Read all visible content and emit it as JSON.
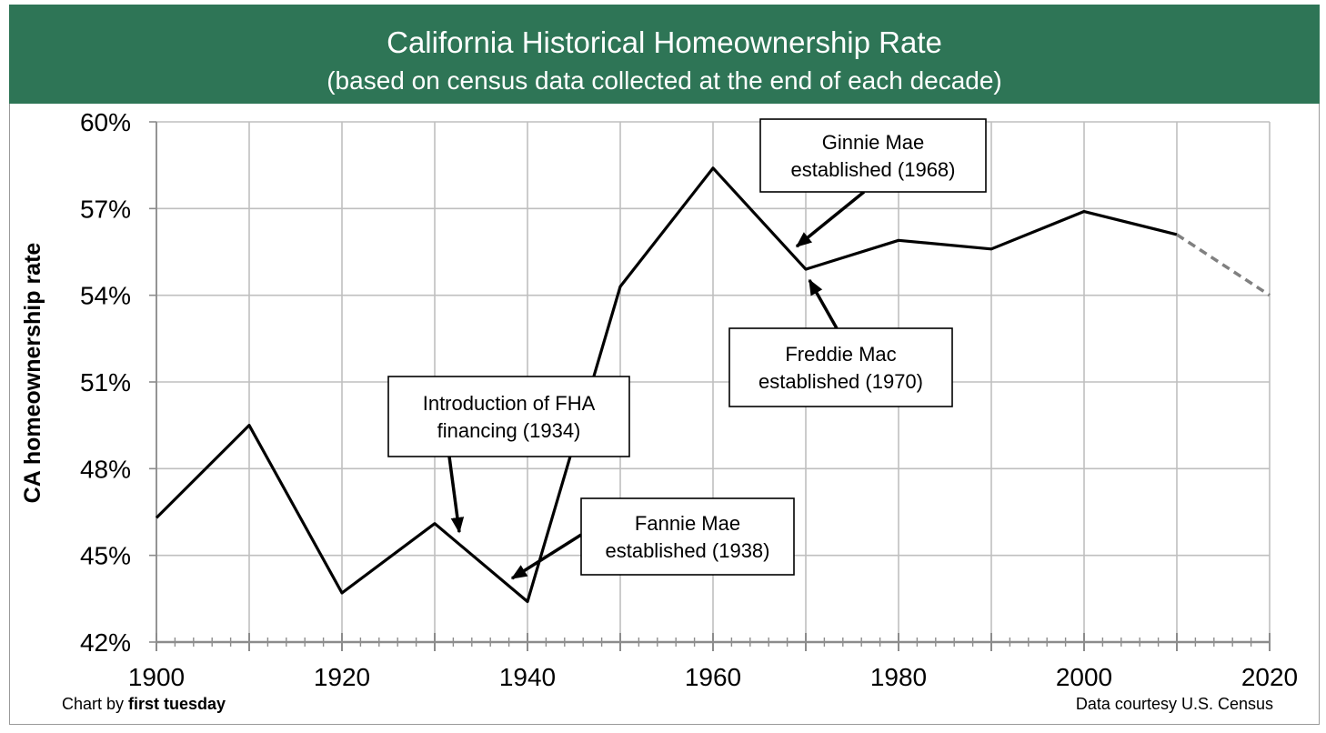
{
  "chart_data": {
    "type": "line",
    "title": "California Historical Homeownership Rate",
    "subtitle": "(based on census data collected at the end of each decade)",
    "ylabel": "CA homeownership rate",
    "xlabel": "",
    "xlim": [
      1900,
      2020
    ],
    "ylim": [
      42,
      60
    ],
    "x_ticks": [
      1900,
      1920,
      1940,
      1960,
      1980,
      2000,
      2020
    ],
    "y_ticks": [
      42,
      45,
      48,
      51,
      54,
      57,
      60
    ],
    "y_tick_labels": [
      "42%",
      "45%",
      "48%",
      "51%",
      "54%",
      "57%",
      "60%"
    ],
    "grid": true,
    "series": [
      {
        "style": "solid",
        "color": "#000000",
        "x": [
          1900,
          1910,
          1920,
          1930,
          1940,
          1950,
          1960,
          1970,
          1980,
          1990,
          2000,
          2010
        ],
        "y": [
          46.3,
          49.5,
          43.7,
          46.1,
          43.4,
          54.3,
          58.4,
          54.9,
          55.9,
          55.6,
          56.9,
          56.1
        ]
      },
      {
        "style": "dashed",
        "color": "#808080",
        "x": [
          2010,
          2020
        ],
        "y": [
          56.1,
          54.0
        ]
      }
    ],
    "annotations": [
      {
        "lines": [
          "Ginnie Mae",
          "established (1968)"
        ]
      },
      {
        "lines": [
          "Freddie Mac",
          "established (1970)"
        ]
      },
      {
        "lines": [
          "Introduction of FHA",
          "financing (1934)"
        ]
      },
      {
        "lines": [
          "Fannie Mae",
          "established (1938)"
        ]
      }
    ]
  },
  "footer": {
    "credit_prefix": "Chart by ",
    "credit_name": "first tuesday",
    "source": "Data courtesy U.S. Census"
  },
  "colors": {
    "header_bg": "#2e7556",
    "grid": "#bfbfbf",
    "axis": "#8c8c8c"
  }
}
